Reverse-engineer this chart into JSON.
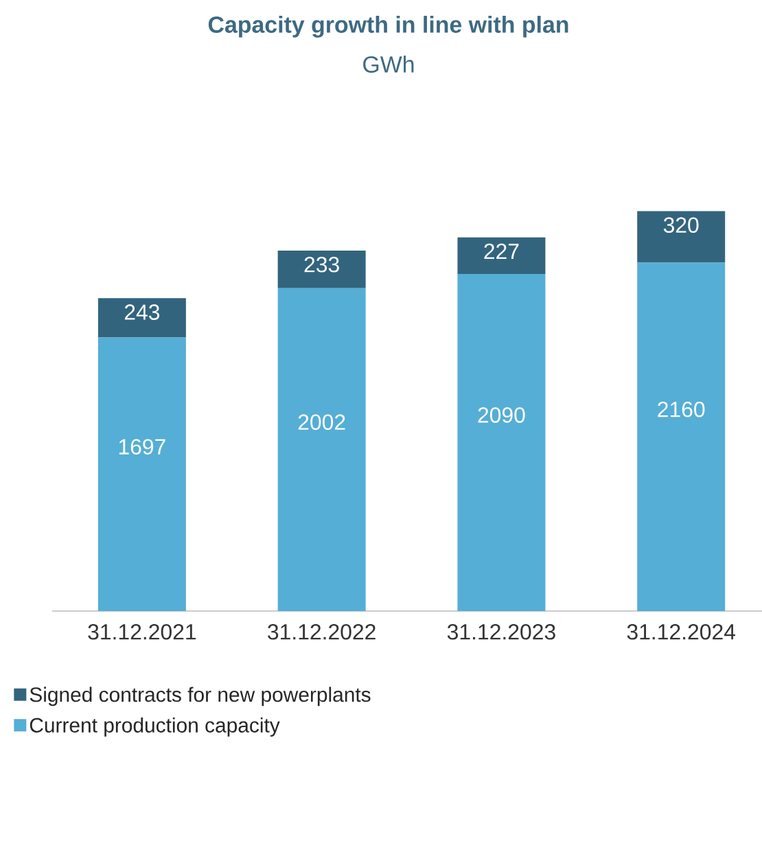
{
  "chart_data": {
    "type": "bar",
    "title": "Capacity growth in line with plan",
    "subtitle": "GWh",
    "categories": [
      "31.12.2021",
      "31.12.2022",
      "31.12.2023",
      "31.12.2024"
    ],
    "stacked": true,
    "data_labels": true,
    "legend": "bottom left",
    "series": [
      {
        "name": "Current production capacity",
        "color": "#55aed5",
        "values": [
          1697,
          2002,
          2090,
          2160
        ]
      },
      {
        "name": "Signed contracts for new powerplants",
        "color": "#33647e",
        "values": [
          243,
          233,
          227,
          320
        ]
      }
    ]
  }
}
